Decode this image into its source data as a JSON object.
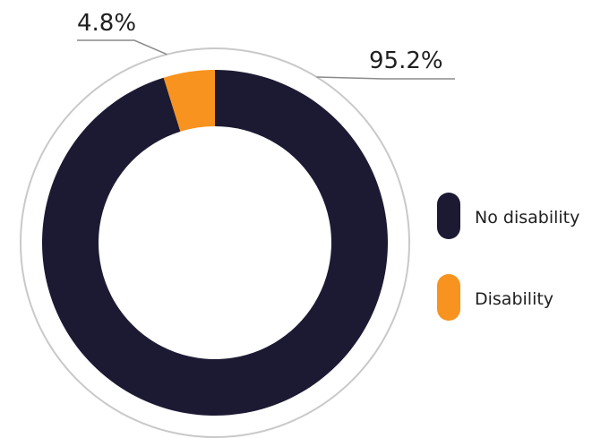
{
  "chart_data": {
    "type": "pie",
    "variant": "donut",
    "title": "",
    "slices": [
      {
        "label": "No disability",
        "value": 95.2,
        "value_label": "95.2%",
        "color": "#1c1a33"
      },
      {
        "label": "Disability",
        "value": 4.8,
        "value_label": "4.8%",
        "color": "#f7931e"
      }
    ],
    "legend_position": "right",
    "outline_color": "#c9c9c9"
  }
}
